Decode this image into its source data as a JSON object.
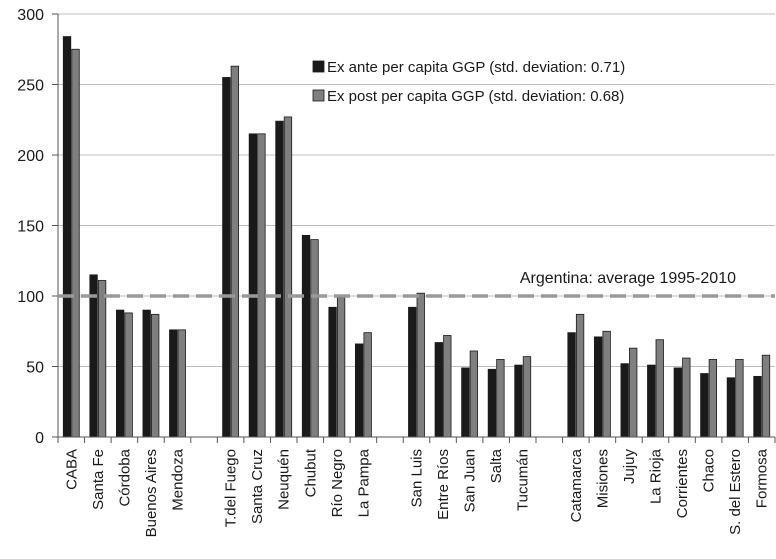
{
  "chart_data": {
    "type": "bar",
    "title": "",
    "xlabel": "",
    "ylabel": "",
    "ylim": [
      0,
      300
    ],
    "yticks": [
      0,
      50,
      100,
      150,
      200,
      250,
      300
    ],
    "grid": true,
    "legend_position": "top-center",
    "groups": [
      [
        "CABA",
        "Santa Fe",
        "Córdoba",
        "Buenos Aires",
        "Mendoza"
      ],
      [
        "T.del Fuego",
        "Santa Cruz",
        "Neuquén",
        "Chubut",
        "Río Negro",
        "La Pampa"
      ],
      [
        "San Luis",
        "Entre Ríos",
        "San Juan",
        "Salta",
        "Tucumán"
      ],
      [
        "Catamarca",
        "Misiones",
        "Jujuy",
        "La Rioja",
        "Corrientes",
        "Chaco",
        "S. del Estero",
        "Formosa"
      ]
    ],
    "categories": [
      "CABA",
      "Santa Fe",
      "Córdoba",
      "Buenos Aires",
      "Mendoza",
      "T.del Fuego",
      "Santa Cruz",
      "Neuquén",
      "Chubut",
      "Río Negro",
      "La Pampa",
      "San Luis",
      "Entre Ríos",
      "San Juan",
      "Salta",
      "Tucumán",
      "Catamarca",
      "Misiones",
      "Jujuy",
      "La Rioja",
      "Corrientes",
      "Chaco",
      "S. del Estero",
      "Formosa"
    ],
    "series": [
      {
        "name": "Ex ante per capita GGP (std. deviation: 0.71)",
        "color": "#1a1a1a",
        "values": [
          284,
          115,
          90,
          90,
          76,
          255,
          215,
          224,
          143,
          92,
          66,
          92,
          67,
          49,
          48,
          51,
          74,
          71,
          52,
          51,
          49,
          45,
          42,
          43
        ]
      },
      {
        "name": "Ex post per capita GGP (std. deviation: 0.68)",
        "color": "#7f7f7f",
        "values": [
          275,
          111,
          88,
          87,
          76,
          263,
          215,
          227,
          140,
          99,
          74,
          102,
          72,
          61,
          55,
          57,
          87,
          75,
          63,
          69,
          56,
          55,
          55,
          58
        ]
      }
    ],
    "reference_line": {
      "value": 100,
      "label": "Argentina: average 1995-2010",
      "color": "#999999",
      "style": "dashed"
    }
  }
}
